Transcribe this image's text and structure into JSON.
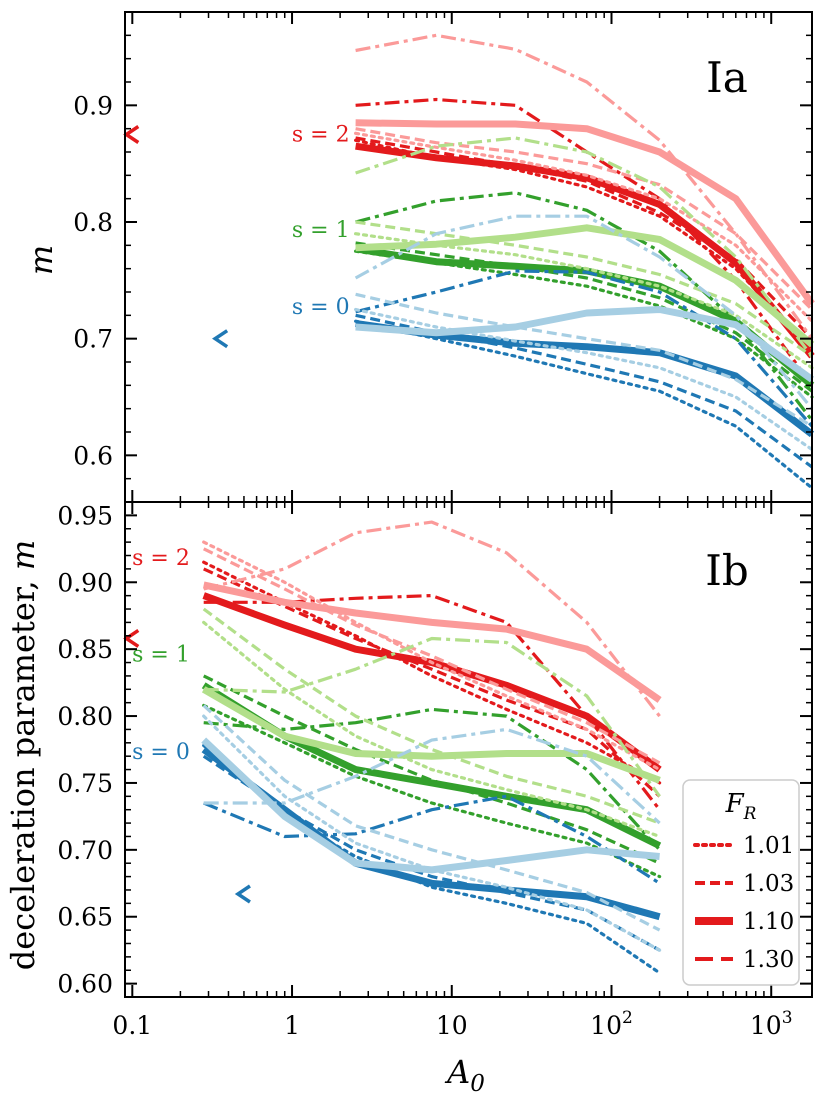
{
  "chart_data": [
    {
      "panel": "Ia",
      "type": "line",
      "title": "Ia",
      "ylabel": "m",
      "xscale": "log",
      "xlim": [
        0.09,
        1800
      ],
      "ylim": [
        0.56,
        0.98
      ],
      "yticks": [
        0.6,
        0.7,
        0.8,
        0.9
      ],
      "ytick_labels": [
        "0.6",
        "0.7",
        "0.8",
        "0.9"
      ],
      "s_labels": [
        {
          "text": "s = 2",
          "color": "#e31a1c",
          "x": 2.5,
          "y": 0.875
        },
        {
          "text": "s = 1",
          "color": "#33a02c",
          "x": 2.5,
          "y": 0.793
        },
        {
          "text": "s = 0",
          "color": "#1f78b4",
          "x": 2.5,
          "y": 0.727
        }
      ],
      "markers": [
        {
          "x": 0.1,
          "y": 0.875,
          "color": "#e31a1c",
          "symbol": "<"
        },
        {
          "x": 0.36,
          "y": 0.7,
          "color": "#1f78b4",
          "symbol": "<"
        }
      ],
      "x": [
        2.5,
        8,
        25,
        70,
        200,
        600,
        1800
      ],
      "series": [
        {
          "s": 2,
          "FR": "1.01",
          "color": "#e31a1c",
          "style": "dotted",
          "values": [
            0.87,
            0.855,
            0.845,
            0.83,
            0.805,
            0.76,
            0.69
          ]
        },
        {
          "s": 2,
          "FR": "1.03",
          "color": "#e31a1c",
          "style": "dashed",
          "values": [
            0.872,
            0.86,
            0.848,
            0.835,
            0.808,
            0.768,
            0.7
          ]
        },
        {
          "s": 2,
          "FR": "1.10",
          "color": "#e31a1c",
          "style": "solid",
          "values": [
            0.865,
            0.855,
            0.848,
            0.838,
            0.815,
            0.765,
            0.685
          ]
        },
        {
          "s": 2,
          "FR": "1.30",
          "color": "#e31a1c",
          "style": "dashdot",
          "values": [
            0.9,
            0.905,
            0.9,
            0.86,
            0.82,
            0.75,
            0.66
          ]
        },
        {
          "s": 2,
          "FR": "1.01",
          "color": "#fb9a99",
          "style": "dotted",
          "values": [
            0.876,
            0.864,
            0.853,
            0.84,
            0.82,
            0.78,
            0.715
          ]
        },
        {
          "s": 2,
          "FR": "1.03",
          "color": "#fb9a99",
          "style": "dashed",
          "values": [
            0.88,
            0.868,
            0.86,
            0.85,
            0.832,
            0.79,
            0.725
          ]
        },
        {
          "s": 2,
          "FR": "1.10",
          "color": "#fb9a99",
          "style": "solid",
          "values": [
            0.885,
            0.884,
            0.884,
            0.88,
            0.86,
            0.82,
            0.73
          ]
        },
        {
          "s": 2,
          "FR": "1.30",
          "color": "#fb9a99",
          "style": "dashdot",
          "values": [
            0.947,
            0.96,
            0.948,
            0.92,
            0.87,
            0.79,
            0.7
          ]
        },
        {
          "s": 1,
          "FR": "1.01",
          "color": "#33a02c",
          "style": "dotted",
          "values": [
            0.775,
            0.765,
            0.755,
            0.745,
            0.728,
            0.7,
            0.65
          ]
        },
        {
          "s": 1,
          "FR": "1.03",
          "color": "#33a02c",
          "style": "dashed",
          "values": [
            0.782,
            0.772,
            0.762,
            0.752,
            0.735,
            0.705,
            0.655
          ]
        },
        {
          "s": 1,
          "FR": "1.10",
          "color": "#33a02c",
          "style": "solid",
          "values": [
            0.777,
            0.766,
            0.762,
            0.758,
            0.745,
            0.715,
            0.66
          ]
        },
        {
          "s": 1,
          "FR": "1.30",
          "color": "#33a02c",
          "style": "dashdot",
          "values": [
            0.8,
            0.818,
            0.825,
            0.81,
            0.775,
            0.715,
            0.63
          ]
        },
        {
          "s": 1,
          "FR": "1.01",
          "color": "#b2df8a",
          "style": "dotted",
          "values": [
            0.79,
            0.78,
            0.772,
            0.76,
            0.745,
            0.72,
            0.675
          ]
        },
        {
          "s": 1,
          "FR": "1.03",
          "color": "#b2df8a",
          "style": "dashed",
          "values": [
            0.8,
            0.79,
            0.78,
            0.77,
            0.755,
            0.73,
            0.685
          ]
        },
        {
          "s": 1,
          "FR": "1.10",
          "color": "#b2df8a",
          "style": "solid",
          "values": [
            0.778,
            0.781,
            0.787,
            0.795,
            0.785,
            0.75,
            0.695
          ]
        },
        {
          "s": 1,
          "FR": "1.30",
          "color": "#b2df8a",
          "style": "dashdot",
          "values": [
            0.842,
            0.865,
            0.872,
            0.86,
            0.83,
            0.77,
            0.685
          ]
        },
        {
          "s": 0,
          "FR": "1.01",
          "color": "#1f78b4",
          "style": "dotted",
          "values": [
            0.715,
            0.7,
            0.685,
            0.67,
            0.655,
            0.625,
            0.572
          ]
        },
        {
          "s": 0,
          "FR": "1.03",
          "color": "#1f78b4",
          "style": "dashed",
          "values": [
            0.72,
            0.705,
            0.692,
            0.678,
            0.663,
            0.638,
            0.59
          ]
        },
        {
          "s": 0,
          "FR": "1.10",
          "color": "#1f78b4",
          "style": "solid",
          "values": [
            0.713,
            0.703,
            0.696,
            0.693,
            0.688,
            0.668,
            0.618
          ]
        },
        {
          "s": 0,
          "FR": "1.30",
          "color": "#1f78b4",
          "style": "dashdot",
          "values": [
            0.723,
            0.74,
            0.758,
            0.757,
            0.74,
            0.7,
            0.625
          ]
        },
        {
          "s": 0,
          "FR": "1.01",
          "color": "#a6cee3",
          "style": "dotted",
          "values": [
            0.725,
            0.71,
            0.698,
            0.688,
            0.675,
            0.65,
            0.605
          ]
        },
        {
          "s": 0,
          "FR": "1.03",
          "color": "#a6cee3",
          "style": "dashed",
          "values": [
            0.738,
            0.722,
            0.71,
            0.7,
            0.69,
            0.665,
            0.625
          ]
        },
        {
          "s": 0,
          "FR": "1.10",
          "color": "#a6cee3",
          "style": "solid",
          "values": [
            0.71,
            0.705,
            0.71,
            0.722,
            0.725,
            0.712,
            0.665
          ]
        },
        {
          "s": 0,
          "FR": "1.30",
          "color": "#a6cee3",
          "style": "dashdot",
          "values": [
            0.752,
            0.79,
            0.805,
            0.805,
            0.77,
            0.72,
            0.64
          ]
        }
      ]
    },
    {
      "panel": "Ib",
      "type": "line",
      "title": "Ib",
      "ylabel": "deceleration parameter, m",
      "xlabel": "A0",
      "xscale": "log",
      "xlim": [
        0.09,
        1800
      ],
      "ylim": [
        0.59,
        0.96
      ],
      "xticks": [
        0.1,
        1,
        10,
        100,
        1000
      ],
      "xtick_labels": [
        "0.1",
        "1",
        "10",
        "10^2",
        "10^3"
      ],
      "yticks": [
        0.6,
        0.65,
        0.7,
        0.75,
        0.8,
        0.85,
        0.9,
        0.95
      ],
      "ytick_labels": [
        "0.60",
        "0.65",
        "0.70",
        "0.75",
        "0.80",
        "0.85",
        "0.90",
        "0.95"
      ],
      "s_labels": [
        {
          "text": "s = 2",
          "color": "#e31a1c",
          "x": 0.25,
          "y": 0.918
        },
        {
          "text": "s = 1",
          "color": "#33a02c",
          "x": 0.25,
          "y": 0.846
        },
        {
          "text": "s = 0",
          "color": "#1f78b4",
          "x": 0.25,
          "y": 0.773
        }
      ],
      "markers": [
        {
          "x": 0.1,
          "y": 0.858,
          "color": "#e31a1c",
          "symbol": "<"
        },
        {
          "x": 0.5,
          "y": 0.667,
          "color": "#1f78b4",
          "symbol": "<"
        }
      ],
      "x": [
        0.28,
        0.9,
        2.5,
        7.5,
        22,
        70,
        200
      ],
      "series": [
        {
          "s": 2,
          "FR": "1.01",
          "color": "#e31a1c",
          "style": "dotted",
          "values": [
            0.915,
            0.885,
            0.86,
            0.83,
            0.805,
            0.78,
            0.75
          ]
        },
        {
          "s": 2,
          "FR": "1.03",
          "color": "#e31a1c",
          "style": "dashed",
          "values": [
            0.91,
            0.882,
            0.858,
            0.835,
            0.812,
            0.79,
            0.74
          ]
        },
        {
          "s": 2,
          "FR": "1.10",
          "color": "#e31a1c",
          "style": "solid",
          "values": [
            0.89,
            0.868,
            0.85,
            0.84,
            0.823,
            0.8,
            0.76
          ]
        },
        {
          "s": 2,
          "FR": "1.30",
          "color": "#e31a1c",
          "style": "dashdot",
          "values": [
            0.885,
            0.885,
            0.888,
            0.89,
            0.87,
            0.8,
            0.73
          ]
        },
        {
          "s": 2,
          "FR": "1.01",
          "color": "#fb9a99",
          "style": "dotted",
          "values": [
            0.93,
            0.9,
            0.87,
            0.84,
            0.815,
            0.79,
            0.76
          ]
        },
        {
          "s": 2,
          "FR": "1.03",
          "color": "#fb9a99",
          "style": "dashed",
          "values": [
            0.925,
            0.895,
            0.868,
            0.845,
            0.82,
            0.795,
            0.765
          ]
        },
        {
          "s": 2,
          "FR": "1.10",
          "color": "#fb9a99",
          "style": "solid",
          "values": [
            0.898,
            0.885,
            0.877,
            0.87,
            0.865,
            0.85,
            0.812
          ]
        },
        {
          "s": 2,
          "FR": "1.30",
          "color": "#fb9a99",
          "style": "dashdot",
          "values": [
            0.895,
            0.91,
            0.937,
            0.945,
            0.922,
            0.87,
            0.8
          ]
        },
        {
          "s": 1,
          "FR": "1.01",
          "color": "#33a02c",
          "style": "dotted",
          "values": [
            0.808,
            0.78,
            0.755,
            0.735,
            0.72,
            0.705,
            0.68
          ]
        },
        {
          "s": 1,
          "FR": "1.03",
          "color": "#33a02c",
          "style": "dashed",
          "values": [
            0.83,
            0.8,
            0.775,
            0.752,
            0.735,
            0.715,
            0.69
          ]
        },
        {
          "s": 1,
          "FR": "1.10",
          "color": "#33a02c",
          "style": "solid",
          "values": [
            0.823,
            0.785,
            0.76,
            0.75,
            0.74,
            0.73,
            0.703
          ]
        },
        {
          "s": 1,
          "FR": "1.30",
          "color": "#33a02c",
          "style": "dashdot",
          "values": [
            0.795,
            0.79,
            0.795,
            0.805,
            0.8,
            0.76,
            0.7
          ]
        },
        {
          "s": 1,
          "FR": "1.01",
          "color": "#b2df8a",
          "style": "dotted",
          "values": [
            0.87,
            0.82,
            0.785,
            0.76,
            0.745,
            0.73,
            0.71
          ]
        },
        {
          "s": 1,
          "FR": "1.03",
          "color": "#b2df8a",
          "style": "dashed",
          "values": [
            0.88,
            0.835,
            0.8,
            0.775,
            0.755,
            0.74,
            0.72
          ]
        },
        {
          "s": 1,
          "FR": "1.10",
          "color": "#b2df8a",
          "style": "solid",
          "values": [
            0.82,
            0.785,
            0.772,
            0.77,
            0.772,
            0.772,
            0.752
          ]
        },
        {
          "s": 1,
          "FR": "1.30",
          "color": "#b2df8a",
          "style": "dashdot",
          "values": [
            0.82,
            0.818,
            0.835,
            0.858,
            0.855,
            0.815,
            0.74
          ]
        },
        {
          "s": 0,
          "FR": "1.01",
          "color": "#1f78b4",
          "style": "dotted",
          "values": [
            0.778,
            0.725,
            0.695,
            0.672,
            0.66,
            0.645,
            0.608
          ]
        },
        {
          "s": 0,
          "FR": "1.03",
          "color": "#1f78b4",
          "style": "dashed",
          "values": [
            0.77,
            0.73,
            0.7,
            0.68,
            0.668,
            0.655,
            0.625
          ]
        },
        {
          "s": 0,
          "FR": "1.10",
          "color": "#1f78b4",
          "style": "solid",
          "values": [
            0.775,
            0.73,
            0.69,
            0.675,
            0.67,
            0.665,
            0.65
          ]
        },
        {
          "s": 0,
          "FR": "1.30",
          "color": "#1f78b4",
          "style": "dashdot",
          "values": [
            0.735,
            0.71,
            0.712,
            0.73,
            0.74,
            0.71,
            0.675
          ]
        },
        {
          "s": 0,
          "FR": "1.01",
          "color": "#a6cee3",
          "style": "dotted",
          "values": [
            0.8,
            0.74,
            0.705,
            0.685,
            0.672,
            0.655,
            0.625
          ]
        },
        {
          "s": 0,
          "FR": "1.03",
          "color": "#a6cee3",
          "style": "dashed",
          "values": [
            0.808,
            0.752,
            0.718,
            0.7,
            0.685,
            0.668,
            0.64
          ]
        },
        {
          "s": 0,
          "FR": "1.10",
          "color": "#a6cee3",
          "style": "solid",
          "values": [
            0.782,
            0.725,
            0.69,
            0.685,
            0.692,
            0.7,
            0.695
          ]
        },
        {
          "s": 0,
          "FR": "1.30",
          "color": "#a6cee3",
          "style": "dashdot",
          "values": [
            0.735,
            0.735,
            0.755,
            0.782,
            0.79,
            0.77,
            0.72
          ]
        }
      ],
      "legend": {
        "title": "F_R",
        "title_main": "F",
        "title_sub": "R",
        "placement": "lower-right",
        "entries": [
          {
            "label": "1.01",
            "style": "dotted",
            "color": "#e31a1c"
          },
          {
            "label": "1.03",
            "style": "dashed",
            "color": "#e31a1c"
          },
          {
            "label": "1.10",
            "style": "solid",
            "color": "#e31a1c"
          },
          {
            "label": "1.30",
            "style": "dashdot",
            "color": "#e31a1c"
          }
        ]
      }
    }
  ],
  "axis_labels": {
    "top_ylabel": "m",
    "bottom_ylabel_prefix": "deceleration parameter, ",
    "bottom_ylabel_var": "m",
    "xlabel_main": "A",
    "xlabel_sub": "0"
  }
}
